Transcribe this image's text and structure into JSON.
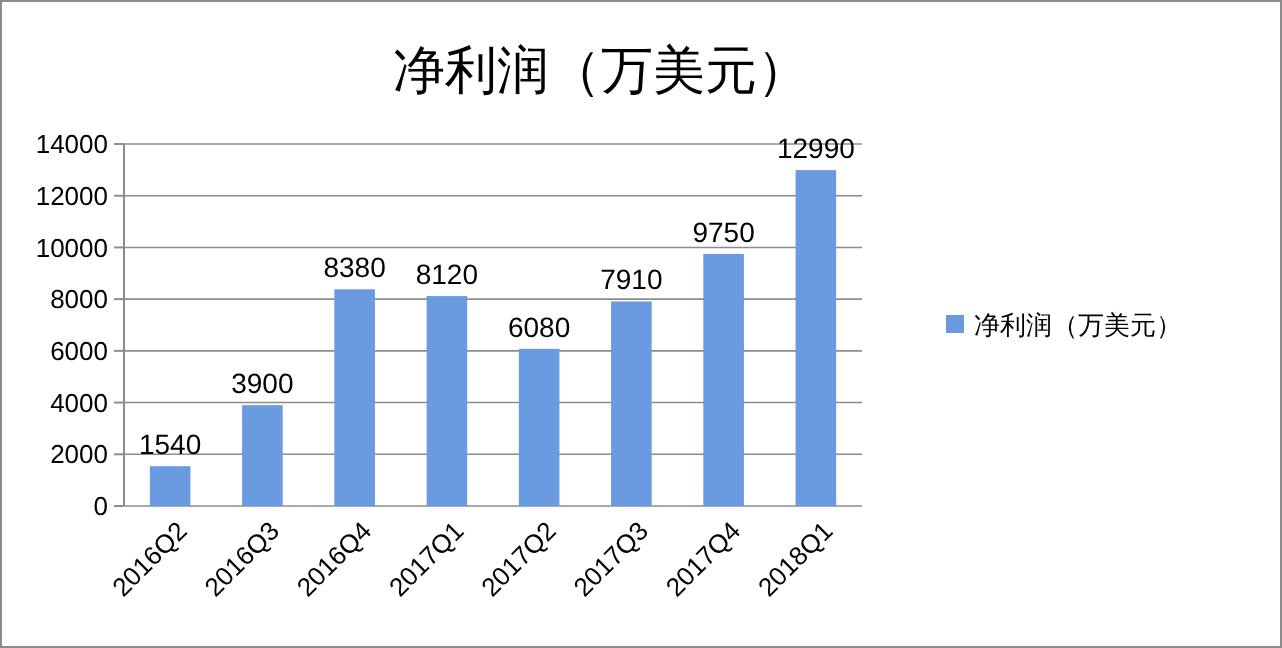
{
  "chart_data": {
    "type": "bar",
    "title": "净利润（万美元）",
    "categories": [
      "2016Q2",
      "2016Q3",
      "2016Q4",
      "2017Q1",
      "2017Q2",
      "2017Q3",
      "2017Q4",
      "2018Q1"
    ],
    "series": [
      {
        "name": "净利润（万美元）",
        "color": "#6a9be0",
        "values": [
          1540,
          3900,
          8380,
          8120,
          6080,
          7910,
          9750,
          12990
        ]
      }
    ],
    "ylim": [
      0,
      14000
    ],
    "yticks": [
      0,
      2000,
      4000,
      6000,
      8000,
      10000,
      12000,
      14000
    ],
    "grid": "y",
    "legend": "right",
    "data_labels": true
  }
}
